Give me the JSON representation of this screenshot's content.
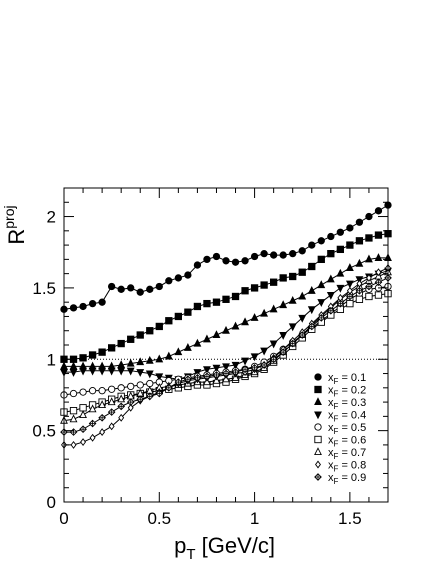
{
  "chart_data": {
    "type": "line",
    "xlabel": "p_T [GeV/c]",
    "ylabel": "R^proj",
    "xlim": [
      0,
      1.7
    ],
    "ylim": [
      0,
      2.2
    ],
    "xticks": [
      0,
      0.5,
      1,
      1.5
    ],
    "xtick_labels": [
      "0",
      "0.5",
      "1",
      "1.5"
    ],
    "yticks": [
      0,
      0.5,
      1,
      1.5,
      2
    ],
    "ytick_labels": [
      "0",
      "0.5",
      "1",
      "1.5",
      "2"
    ],
    "reference_line": 1,
    "legend_position": "bottom-right",
    "series": [
      {
        "name": "x_F = 0.1",
        "marker": "circle-filled",
        "x": [
          0,
          0.05,
          0.1,
          0.15,
          0.2,
          0.25,
          0.3,
          0.35,
          0.4,
          0.45,
          0.5,
          0.55,
          0.6,
          0.65,
          0.7,
          0.75,
          0.8,
          0.85,
          0.9,
          0.95,
          1.0,
          1.05,
          1.1,
          1.15,
          1.2,
          1.25,
          1.3,
          1.35,
          1.4,
          1.45,
          1.5,
          1.55,
          1.6,
          1.65,
          1.7
        ],
        "y": [
          1.35,
          1.36,
          1.37,
          1.39,
          1.4,
          1.51,
          1.49,
          1.5,
          1.47,
          1.49,
          1.51,
          1.55,
          1.57,
          1.59,
          1.66,
          1.7,
          1.72,
          1.69,
          1.68,
          1.69,
          1.72,
          1.74,
          1.73,
          1.73,
          1.74,
          1.76,
          1.8,
          1.83,
          1.86,
          1.89,
          1.92,
          1.96,
          2.0,
          2.04,
          2.08
        ]
      },
      {
        "name": "x_F = 0.2",
        "marker": "square-filled",
        "x": [
          0,
          0.05,
          0.1,
          0.15,
          0.2,
          0.25,
          0.3,
          0.35,
          0.4,
          0.45,
          0.5,
          0.55,
          0.6,
          0.65,
          0.7,
          0.75,
          0.8,
          0.85,
          0.9,
          0.95,
          1.0,
          1.05,
          1.1,
          1.15,
          1.2,
          1.25,
          1.3,
          1.35,
          1.4,
          1.45,
          1.5,
          1.55,
          1.6,
          1.65,
          1.7
        ],
        "y": [
          1.0,
          1.0,
          1.01,
          1.03,
          1.05,
          1.08,
          1.11,
          1.14,
          1.17,
          1.2,
          1.23,
          1.27,
          1.3,
          1.33,
          1.37,
          1.39,
          1.4,
          1.42,
          1.44,
          1.48,
          1.5,
          1.52,
          1.54,
          1.57,
          1.58,
          1.61,
          1.65,
          1.7,
          1.74,
          1.77,
          1.8,
          1.83,
          1.85,
          1.87,
          1.88
        ]
      },
      {
        "name": "x_F = 0.3",
        "marker": "triangle-up-filled",
        "x": [
          0,
          0.05,
          0.1,
          0.15,
          0.2,
          0.25,
          0.3,
          0.35,
          0.4,
          0.45,
          0.5,
          0.55,
          0.6,
          0.65,
          0.7,
          0.75,
          0.8,
          0.85,
          0.9,
          0.95,
          1.0,
          1.05,
          1.1,
          1.15,
          1.2,
          1.25,
          1.3,
          1.35,
          1.4,
          1.45,
          1.5,
          1.55,
          1.6,
          1.65,
          1.7
        ],
        "y": [
          0.95,
          0.95,
          0.95,
          0.95,
          0.95,
          0.95,
          0.96,
          0.97,
          0.98,
          0.99,
          1.0,
          1.02,
          1.05,
          1.08,
          1.11,
          1.14,
          1.17,
          1.2,
          1.23,
          1.26,
          1.29,
          1.32,
          1.35,
          1.38,
          1.41,
          1.44,
          1.48,
          1.52,
          1.56,
          1.6,
          1.64,
          1.67,
          1.7,
          1.71,
          1.71
        ]
      },
      {
        "name": "x_F = 0.4",
        "marker": "triangle-down-filled",
        "x": [
          0,
          0.05,
          0.1,
          0.15,
          0.2,
          0.25,
          0.3,
          0.35,
          0.4,
          0.45,
          0.5,
          0.55,
          0.6,
          0.65,
          0.7,
          0.75,
          0.8,
          0.85,
          0.9,
          0.95,
          1.0,
          1.05,
          1.1,
          1.15,
          1.2,
          1.25,
          1.3,
          1.35,
          1.4,
          1.45,
          1.5,
          1.55,
          1.6,
          1.65,
          1.7
        ],
        "y": [
          0.91,
          0.91,
          0.92,
          0.92,
          0.92,
          0.92,
          0.92,
          0.92,
          0.91,
          0.9,
          0.88,
          0.87,
          0.86,
          0.88,
          0.91,
          0.93,
          0.94,
          0.95,
          0.96,
          0.99,
          1.02,
          1.06,
          1.11,
          1.17,
          1.23,
          1.29,
          1.35,
          1.4,
          1.45,
          1.5,
          1.53,
          1.56,
          1.58,
          1.6,
          1.62
        ]
      },
      {
        "name": "x_F = 0.5",
        "marker": "circle-open",
        "x": [
          0,
          0.05,
          0.1,
          0.15,
          0.2,
          0.25,
          0.3,
          0.35,
          0.4,
          0.45,
          0.5,
          0.55,
          0.6,
          0.65,
          0.7,
          0.75,
          0.8,
          0.85,
          0.9,
          0.95,
          1.0,
          1.05,
          1.1,
          1.15,
          1.2,
          1.25,
          1.3,
          1.35,
          1.4,
          1.45,
          1.5,
          1.55,
          1.6,
          1.65,
          1.7
        ],
        "y": [
          0.75,
          0.76,
          0.77,
          0.78,
          0.78,
          0.79,
          0.8,
          0.81,
          0.82,
          0.83,
          0.84,
          0.85,
          0.86,
          0.87,
          0.88,
          0.89,
          0.9,
          0.91,
          0.92,
          0.93,
          0.95,
          0.98,
          1.02,
          1.07,
          1.12,
          1.17,
          1.22,
          1.27,
          1.32,
          1.37,
          1.42,
          1.46,
          1.49,
          1.5,
          1.51
        ]
      },
      {
        "name": "x_F = 0.6",
        "marker": "square-open",
        "x": [
          0,
          0.05,
          0.1,
          0.15,
          0.2,
          0.25,
          0.3,
          0.35,
          0.4,
          0.45,
          0.5,
          0.55,
          0.6,
          0.65,
          0.7,
          0.75,
          0.8,
          0.85,
          0.9,
          0.95,
          1.0,
          1.05,
          1.1,
          1.15,
          1.2,
          1.25,
          1.3,
          1.35,
          1.4,
          1.45,
          1.5,
          1.55,
          1.6,
          1.65,
          1.7
        ],
        "y": [
          0.63,
          0.64,
          0.66,
          0.68,
          0.7,
          0.72,
          0.74,
          0.75,
          0.76,
          0.77,
          0.78,
          0.79,
          0.8,
          0.81,
          0.82,
          0.82,
          0.83,
          0.84,
          0.86,
          0.88,
          0.9,
          0.93,
          0.98,
          1.03,
          1.09,
          1.15,
          1.21,
          1.26,
          1.31,
          1.35,
          1.39,
          1.42,
          1.44,
          1.45,
          1.46
        ]
      },
      {
        "name": "x_F = 0.7",
        "marker": "triangle-up-open",
        "x": [
          0,
          0.05,
          0.1,
          0.15,
          0.2,
          0.25,
          0.3,
          0.35,
          0.4,
          0.45,
          0.5,
          0.55,
          0.6,
          0.65,
          0.7,
          0.75,
          0.8,
          0.85,
          0.9,
          0.95,
          1.0,
          1.05,
          1.1,
          1.15,
          1.2,
          1.25,
          1.3,
          1.35,
          1.4,
          1.45,
          1.5,
          1.55,
          1.6,
          1.65,
          1.7
        ],
        "y": [
          0.57,
          0.58,
          0.61,
          0.65,
          0.68,
          0.7,
          0.72,
          0.74,
          0.76,
          0.78,
          0.8,
          0.81,
          0.82,
          0.83,
          0.84,
          0.84,
          0.85,
          0.86,
          0.87,
          0.89,
          0.91,
          0.94,
          0.99,
          1.05,
          1.11,
          1.17,
          1.24,
          1.3,
          1.36,
          1.42,
          1.47,
          1.51,
          1.55,
          1.58,
          1.61
        ]
      },
      {
        "name": "x_F = 0.8",
        "marker": "diamond-open",
        "x": [
          0,
          0.05,
          0.1,
          0.15,
          0.2,
          0.25,
          0.3,
          0.35,
          0.4,
          0.45,
          0.5,
          0.55,
          0.6,
          0.65,
          0.7,
          0.75,
          0.8,
          0.85,
          0.9,
          0.95,
          1.0,
          1.05,
          1.1,
          1.15,
          1.2,
          1.25,
          1.3,
          1.35,
          1.4,
          1.45,
          1.5,
          1.55,
          1.6,
          1.65,
          1.7
        ],
        "y": [
          0.4,
          0.4,
          0.42,
          0.45,
          0.49,
          0.53,
          0.59,
          0.66,
          0.71,
          0.74,
          0.77,
          0.8,
          0.83,
          0.85,
          0.86,
          0.87,
          0.88,
          0.89,
          0.9,
          0.91,
          0.93,
          0.96,
          1.01,
          1.07,
          1.13,
          1.19,
          1.25,
          1.31,
          1.37,
          1.43,
          1.48,
          1.53,
          1.57,
          1.61,
          1.64
        ]
      },
      {
        "name": "x_F = 0.9",
        "marker": "diamond-cross",
        "x": [
          0,
          0.05,
          0.1,
          0.15,
          0.2,
          0.25,
          0.3,
          0.35,
          0.4,
          0.45,
          0.5,
          0.55,
          0.6,
          0.65,
          0.7,
          0.75,
          0.8,
          0.85,
          0.9,
          0.95,
          1.0,
          1.05,
          1.1,
          1.15,
          1.2,
          1.25,
          1.3,
          1.35,
          1.4,
          1.45,
          1.5,
          1.55,
          1.6,
          1.65,
          1.7
        ],
        "y": [
          0.49,
          0.49,
          0.51,
          0.55,
          0.59,
          0.63,
          0.67,
          0.7,
          0.72,
          0.74,
          0.76,
          0.8,
          0.84,
          0.86,
          0.87,
          0.88,
          0.89,
          0.9,
          0.91,
          0.93,
          0.94,
          0.96,
          1.0,
          1.05,
          1.11,
          1.17,
          1.23,
          1.29,
          1.34,
          1.39,
          1.44,
          1.48,
          1.51,
          1.54,
          1.57
        ]
      }
    ]
  }
}
